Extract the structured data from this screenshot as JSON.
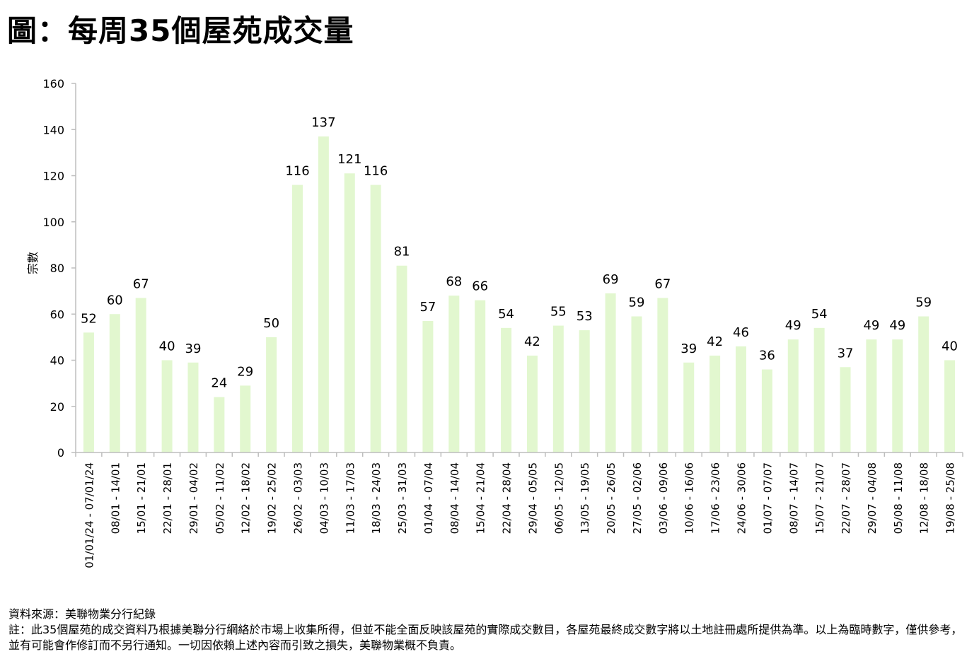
{
  "title": "圖：每周35個屋苑成交量",
  "chart_data": {
    "type": "bar",
    "title": "圖：每周35個屋苑成交量",
    "xlabel": "",
    "ylabel": "宗數",
    "ylim": [
      0,
      160
    ],
    "yticks": [
      0,
      20,
      40,
      60,
      80,
      100,
      120,
      140,
      160
    ],
    "grid": false,
    "bar_color": "#e2f7cf",
    "categories": [
      "01/01/24 - 07/01/24",
      "08/01 - 14/01",
      "15/01 - 21/01",
      "22/01 - 28/01",
      "29/01 - 04/02",
      "05/02 - 11/02",
      "12/02 - 18/02",
      "19/02 - 25/02",
      "26/02 - 03/03",
      "04/03 - 10/03",
      "11/03 - 17/03",
      "18/03 - 24/03",
      "25/03 - 31/03",
      "01/04 - 07/04",
      "08/04 - 14/04",
      "15/04 - 21/04",
      "22/04 - 28/04",
      "29/04 - 05/05",
      "06/05 - 12/05",
      "13/05 - 19/05",
      "20/05 - 26/05",
      "27/05 - 02/06",
      "03/06 - 09/06",
      "10/06 - 16/06",
      "17/06 - 23/06",
      "24/06 - 30/06",
      "01/07 - 07/07",
      "08/07 - 14/07",
      "15/07 - 21/07",
      "22/07 - 28/07",
      "29/07 - 04/08",
      "05/08 - 11/08",
      "12/08 - 18/08",
      "19/08 - 25/08"
    ],
    "values": [
      52,
      60,
      67,
      40,
      39,
      24,
      29,
      50,
      116,
      137,
      121,
      116,
      81,
      57,
      68,
      66,
      54,
      42,
      55,
      53,
      69,
      59,
      67,
      39,
      42,
      46,
      36,
      49,
      54,
      37,
      49,
      49,
      59,
      40
    ]
  },
  "footer": {
    "source": "資料來源：美聯物業分行紀錄",
    "note": "註：此35個屋苑的成交資料乃根據美聯分行網絡於市場上收集所得，但並不能全面反映該屋苑的實際成交數目，各屋苑最終成交數字將以土地註冊處所提供為準。以上為臨時數字，僅供參考，並有可能會作修訂而不另行通知。一切因依賴上述內容而引致之損失，美聯物業概不負責。"
  }
}
